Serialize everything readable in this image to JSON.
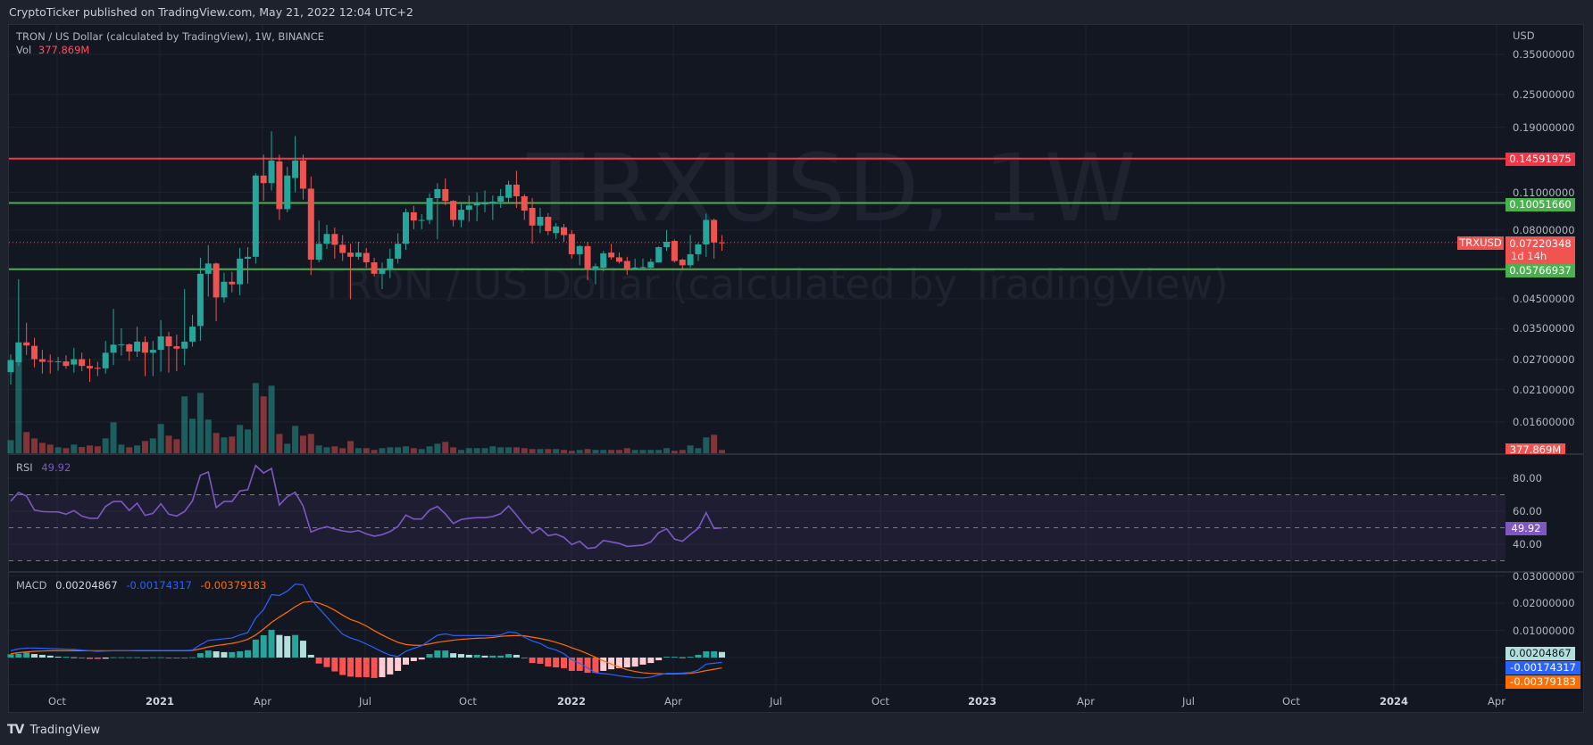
{
  "header": {
    "published": "CryptoTicker published on TradingView.com, May 21, 2022 12:04 UTC+2"
  },
  "legend": {
    "title": "TRON / US Dollar (calculated by TradingView), 1W, BINANCE",
    "vol_label": "Vol",
    "vol_value": "377.869M",
    "rsi_label": "RSI",
    "rsi_value": "49.92",
    "macd_label": "MACD",
    "macd_hist": "0.00204867",
    "macd_line": "-0.00174317",
    "macd_signal": "-0.00379183"
  },
  "watermark": {
    "symbol": "TRXUSD, 1W",
    "description": "TRON / US Dollar (calculated by TradingView)"
  },
  "price_axis": {
    "currency": "USD",
    "labels": [
      "0.35000000",
      "0.25000000",
      "0.19000000",
      "0.11000000",
      "0.08000000",
      "0.04500000",
      "0.03500000",
      "0.02700000",
      "0.02100000",
      "0.01600000"
    ],
    "badges": {
      "resistance": "0.14591975",
      "mid_level": "0.10051660",
      "symbol": "TRXUSD",
      "last_price": "0.07220348",
      "countdown": "1d 14h",
      "support": "0.05766937",
      "volume": "377.869M"
    }
  },
  "rsi_axis": {
    "labels": [
      "80.00",
      "60.00",
      "40.00"
    ],
    "badge": "49.92"
  },
  "macd_axis": {
    "labels": [
      "0.03000000",
      "0.02000000",
      "0.01000000"
    ],
    "badges": {
      "histogram": "0.00204867",
      "macd": "-0.00174317",
      "signal": "-0.00379183"
    }
  },
  "time_axis": {
    "labels": [
      "Oct",
      "2021",
      "Apr",
      "Jul",
      "Oct",
      "2022",
      "Apr",
      "Jul",
      "Oct",
      "2023",
      "Apr",
      "Jul",
      "Oct",
      "2024",
      "Apr"
    ]
  },
  "footer": {
    "brand": "TradingView"
  },
  "colors": {
    "up": "#26a69a",
    "down": "#ef5350",
    "resistance_line": "#f23645",
    "support_line": "#4caf50",
    "rsi": "#7e57c2",
    "macd": "#2962ff",
    "signal": "#ff6d00",
    "hist_up_strong": "#26a69a",
    "hist_up_weak": "#b2dfdb",
    "hist_down_strong": "#ff5252",
    "hist_down_weak": "#ffcdd2"
  },
  "chart_data": {
    "type": "candlestick",
    "symbol": "TRXUSD",
    "interval": "1W",
    "y_scale": "log",
    "horizontal_lines": [
      {
        "value": 0.14591975,
        "color": "#f23645"
      },
      {
        "value": 0.1005166,
        "color": "#4caf50"
      },
      {
        "value": 0.05766937,
        "color": "#4caf50"
      }
    ],
    "last_price": 0.07220348,
    "ohlc": [
      [
        0.0243,
        0.0282,
        0.0219,
        0.0269
      ],
      [
        0.0264,
        0.053,
        0.0256,
        0.0312
      ],
      [
        0.0312,
        0.0368,
        0.0281,
        0.0304
      ],
      [
        0.0303,
        0.0324,
        0.0253,
        0.0271
      ],
      [
        0.0271,
        0.0293,
        0.024,
        0.0265
      ],
      [
        0.0267,
        0.0282,
        0.024,
        0.0265
      ],
      [
        0.0265,
        0.0276,
        0.0246,
        0.0266
      ],
      [
        0.0266,
        0.028,
        0.025,
        0.0256
      ],
      [
        0.0259,
        0.0298,
        0.0242,
        0.0271
      ],
      [
        0.0271,
        0.0286,
        0.0245,
        0.0256
      ],
      [
        0.0256,
        0.0272,
        0.0224,
        0.0251
      ],
      [
        0.0252,
        0.0265,
        0.0235,
        0.0251
      ],
      [
        0.0251,
        0.0316,
        0.024,
        0.0286
      ],
      [
        0.0286,
        0.0413,
        0.0258,
        0.0306
      ],
      [
        0.0306,
        0.0351,
        0.0279,
        0.0307
      ],
      [
        0.0307,
        0.0309,
        0.0267,
        0.0289
      ],
      [
        0.0289,
        0.0356,
        0.0276,
        0.0314
      ],
      [
        0.0313,
        0.0328,
        0.0235,
        0.0286
      ],
      [
        0.0286,
        0.0316,
        0.0235,
        0.0293
      ],
      [
        0.0293,
        0.0376,
        0.0244,
        0.0328
      ],
      [
        0.0328,
        0.0341,
        0.0242,
        0.0302
      ],
      [
        0.0302,
        0.0333,
        0.0245,
        0.0296
      ],
      [
        0.0296,
        0.0488,
        0.0258,
        0.0314
      ],
      [
        0.0314,
        0.0393,
        0.0301,
        0.0356
      ],
      [
        0.0358,
        0.0635,
        0.0316,
        0.0555
      ],
      [
        0.0555,
        0.0706,
        0.0458,
        0.0605
      ],
      [
        0.0605,
        0.061,
        0.0373,
        0.0455
      ],
      [
        0.0455,
        0.056,
        0.0436,
        0.0519
      ],
      [
        0.0519,
        0.0564,
        0.0475,
        0.0508
      ],
      [
        0.0508,
        0.0689,
        0.0463,
        0.063
      ],
      [
        0.063,
        0.0694,
        0.0511,
        0.064
      ],
      [
        0.064,
        0.1289,
        0.0605,
        0.1266
      ],
      [
        0.1266,
        0.151,
        0.1024,
        0.1188
      ],
      [
        0.1188,
        0.1836,
        0.1116,
        0.1436
      ],
      [
        0.1425,
        0.151,
        0.0872,
        0.0955
      ],
      [
        0.0955,
        0.1362,
        0.093,
        0.1266
      ],
      [
        0.124,
        0.1763,
        0.11,
        0.1436
      ],
      [
        0.1436,
        0.151,
        0.1035,
        0.1134
      ],
      [
        0.1134,
        0.1255,
        0.0549,
        0.0625
      ],
      [
        0.0625,
        0.0868,
        0.0611,
        0.0714
      ],
      [
        0.0714,
        0.0837,
        0.0684,
        0.0775
      ],
      [
        0.0775,
        0.0818,
        0.063,
        0.0708
      ],
      [
        0.0708,
        0.0768,
        0.0618,
        0.0661
      ],
      [
        0.0663,
        0.0714,
        0.0448,
        0.064
      ],
      [
        0.064,
        0.0726,
        0.0625,
        0.0663
      ],
      [
        0.0661,
        0.0689,
        0.0584,
        0.0611
      ],
      [
        0.0611,
        0.0635,
        0.0542,
        0.0555
      ],
      [
        0.0555,
        0.061,
        0.0488,
        0.0575
      ],
      [
        0.0575,
        0.0684,
        0.0535,
        0.063
      ],
      [
        0.063,
        0.078,
        0.0605,
        0.0714
      ],
      [
        0.0714,
        0.096,
        0.0679,
        0.093
      ],
      [
        0.093,
        0.0982,
        0.0807,
        0.0868
      ],
      [
        0.087,
        0.0916,
        0.0807,
        0.0872
      ],
      [
        0.0872,
        0.109,
        0.0843,
        0.1048
      ],
      [
        0.1048,
        0.1187,
        0.0743,
        0.113
      ],
      [
        0.113,
        0.1236,
        0.0987,
        0.1023
      ],
      [
        0.1023,
        0.103,
        0.0826,
        0.0872
      ],
      [
        0.0872,
        0.1003,
        0.082,
        0.095
      ],
      [
        0.095,
        0.1071,
        0.086,
        0.0985
      ],
      [
        0.0985,
        0.11,
        0.0862,
        0.1001
      ],
      [
        0.0995,
        0.1117,
        0.093,
        0.1001
      ],
      [
        0.1001,
        0.1071,
        0.0872,
        0.1017
      ],
      [
        0.1017,
        0.113,
        0.0965,
        0.1064
      ],
      [
        0.105,
        0.1212,
        0.1003,
        0.1173
      ],
      [
        0.1173,
        0.1318,
        0.0965,
        0.1064
      ],
      [
        0.1064,
        0.1081,
        0.0872,
        0.0943
      ],
      [
        0.0965,
        0.1048,
        0.0714,
        0.0832
      ],
      [
        0.0832,
        0.0965,
        0.0781,
        0.0895
      ],
      [
        0.0895,
        0.0923,
        0.0768,
        0.0794
      ],
      [
        0.0781,
        0.085,
        0.0743,
        0.0826
      ],
      [
        0.082,
        0.0843,
        0.0726,
        0.0768
      ],
      [
        0.0775,
        0.08,
        0.063,
        0.0654
      ],
      [
        0.0654,
        0.0706,
        0.0596,
        0.07
      ],
      [
        0.07,
        0.0726,
        0.0526,
        0.058
      ],
      [
        0.0573,
        0.0605,
        0.0508,
        0.0591
      ],
      [
        0.0584,
        0.0673,
        0.0566,
        0.0659
      ],
      [
        0.0663,
        0.0714,
        0.0625,
        0.0637
      ],
      [
        0.0637,
        0.0664,
        0.0605,
        0.0614
      ],
      [
        0.0618,
        0.064,
        0.055,
        0.058
      ],
      [
        0.058,
        0.063,
        0.0575,
        0.0585
      ],
      [
        0.0584,
        0.063,
        0.058,
        0.0587
      ],
      [
        0.0584,
        0.063,
        0.058,
        0.0614
      ],
      [
        0.061,
        0.07,
        0.061,
        0.0694
      ],
      [
        0.0694,
        0.08,
        0.0673,
        0.0726
      ],
      [
        0.0731,
        0.074,
        0.061,
        0.0618
      ],
      [
        0.0625,
        0.063,
        0.058,
        0.0596
      ],
      [
        0.0596,
        0.0768,
        0.0584,
        0.0654
      ],
      [
        0.0654,
        0.072,
        0.0618,
        0.071
      ],
      [
        0.071,
        0.092,
        0.064,
        0.0872
      ],
      [
        0.0872,
        0.0882,
        0.063,
        0.0722
      ],
      [
        0.07225,
        0.0768,
        0.0673,
        0.07220348
      ]
    ],
    "volume_millions": [
      1500,
      12240,
      2420,
      1700,
      1190,
      990,
      680,
      580,
      990,
      710,
      890,
      790,
      1700,
      3540,
      990,
      680,
      890,
      1400,
      1700,
      3340,
      2010,
      1600,
      6500,
      3950,
      6900,
      3850,
      2320,
      1810,
      1910,
      3230,
      2720,
      8030,
      6500,
      7720,
      2210,
      1090,
      3130,
      2010,
      2210,
      890,
      680,
      790,
      580,
      1400,
      580,
      580,
      380,
      580,
      680,
      680,
      790,
      580,
      480,
      790,
      1090,
      1300,
      680,
      380,
      580,
      580,
      580,
      790,
      680,
      680,
      680,
      580,
      480,
      480,
      480,
      480,
      380,
      280,
      380,
      480,
      380,
      380,
      380,
      380,
      580,
      380,
      380,
      380,
      380,
      580,
      280,
      380,
      890,
      580,
      1810,
      2110,
      377.869
    ],
    "rsi": {
      "values": [
        66.1,
        71.4,
        69.2,
        60.7,
        59.8,
        59.6,
        59.6,
        58.2,
        60.4,
        57.1,
        55.7,
        55.7,
        62.9,
        65.9,
        65.9,
        60.5,
        64.9,
        57.5,
        58.7,
        64.5,
        58.2,
        57.1,
        59.8,
        66.3,
        81.8,
        83.8,
        62.2,
        65.9,
        65.9,
        72.3,
        73.0,
        87.7,
        83.2,
        85.9,
        63.8,
        68.8,
        71.5,
        63.1,
        47.4,
        49.4,
        50.6,
        49.2,
        48.1,
        47.4,
        48.3,
        46.3,
        44.9,
        45.8,
        47.7,
        50.8,
        57.7,
        55.3,
        55.3,
        60.7,
        62.9,
        58.4,
        52.6,
        55.0,
        55.7,
        56.1,
        56.1,
        56.8,
        58.5,
        63.2,
        57.7,
        51.5,
        46.7,
        49.7,
        45.2,
        46.1,
        44.2,
        39.8,
        41.8,
        37.5,
        38.0,
        42.3,
        41.4,
        40.5,
        38.7,
        39.1,
        39.5,
        41.4,
        47.0,
        49.4,
        43.1,
        41.8,
        45.9,
        49.7,
        59.1,
        49.6,
        49.92
      ],
      "bands": [
        70,
        50,
        30
      ]
    },
    "macd": {
      "macd": [
        0.0025,
        0.0032,
        0.0035,
        0.0035,
        0.0034,
        0.0033,
        0.0032,
        0.0031,
        0.003,
        0.0027,
        0.0025,
        0.0023,
        0.0024,
        0.0025,
        0.0025,
        0.0025,
        0.0026,
        0.0026,
        0.0026,
        0.0026,
        0.0026,
        0.0026,
        0.0026,
        0.0028,
        0.0047,
        0.0063,
        0.0066,
        0.0069,
        0.0072,
        0.0083,
        0.0092,
        0.0145,
        0.0176,
        0.0231,
        0.0228,
        0.0244,
        0.027,
        0.0267,
        0.0214,
        0.0181,
        0.0149,
        0.0116,
        0.0086,
        0.0072,
        0.0063,
        0.005,
        0.0036,
        0.0021,
        0.0009,
        0.0004,
        0.0023,
        0.0034,
        0.0043,
        0.0063,
        0.0082,
        0.0087,
        0.0081,
        0.0081,
        0.0081,
        0.0081,
        0.0081,
        0.008,
        0.0083,
        0.0094,
        0.0091,
        0.0075,
        0.0061,
        0.0052,
        0.0036,
        0.0028,
        0.0014,
        -0.0008,
        -0.0021,
        -0.0038,
        -0.0056,
        -0.0059,
        -0.0062,
        -0.0067,
        -0.0071,
        -0.0074,
        -0.0075,
        -0.0072,
        -0.0064,
        -0.0058,
        -0.0058,
        -0.0057,
        -0.0055,
        -0.0046,
        -0.0024,
        -0.0021,
        -0.00174317
      ],
      "signal": [
        0.0014,
        0.0018,
        0.0021,
        0.0023,
        0.0024,
        0.0025,
        0.0025,
        0.0025,
        0.0025,
        0.0025,
        0.0025,
        0.0025,
        0.0025,
        0.0025,
        0.0025,
        0.0025,
        0.0025,
        0.0025,
        0.0025,
        0.0025,
        0.0025,
        0.0025,
        0.0025,
        0.0026,
        0.0032,
        0.0039,
        0.0044,
        0.0048,
        0.0052,
        0.0058,
        0.0067,
        0.0083,
        0.0105,
        0.0129,
        0.0149,
        0.0167,
        0.0187,
        0.0203,
        0.0206,
        0.02,
        0.0189,
        0.0174,
        0.0156,
        0.014,
        0.013,
        0.0116,
        0.0099,
        0.0083,
        0.0069,
        0.0056,
        0.0048,
        0.0045,
        0.0045,
        0.005,
        0.0056,
        0.006,
        0.0064,
        0.0067,
        0.0069,
        0.0071,
        0.0072,
        0.0074,
        0.0078,
        0.008,
        0.0081,
        0.008,
        0.0075,
        0.007,
        0.0064,
        0.0056,
        0.0047,
        0.0036,
        0.0026,
        0.0014,
        0.0001,
        -0.0012,
        -0.0024,
        -0.0035,
        -0.0045,
        -0.0051,
        -0.0056,
        -0.0058,
        -0.0059,
        -0.006,
        -0.006,
        -0.0059,
        -0.0058,
        -0.0054,
        -0.0048,
        -0.0043,
        -0.00379183
      ],
      "histogram": [
        0.0012,
        0.0014,
        0.0019,
        0.0013,
        0.001,
        0.0007,
        0.0003,
        0.0003,
        0.0001,
        -0.0001,
        -0.0005,
        -0.0005,
        -0.0004,
        0.0001,
        0.0001,
        0.0001,
        0.0001,
        -0.0001,
        0.0001,
        0.0001,
        -0.0001,
        -0.0001,
        -0.0001,
        0.0001,
        0.0016,
        0.0026,
        0.0023,
        0.002,
        0.002,
        0.0023,
        0.0027,
        0.0066,
        0.0082,
        0.0102,
        0.0083,
        0.0079,
        0.0083,
        0.0062,
        0.001,
        -0.0022,
        -0.0035,
        -0.0051,
        -0.0064,
        -0.007,
        -0.0072,
        -0.0072,
        -0.0075,
        -0.0072,
        -0.0062,
        -0.0049,
        -0.0026,
        -0.0013,
        -0.0007,
        0.0013,
        0.0026,
        0.0026,
        0.0016,
        0.0013,
        0.001,
        0.001,
        0.0007,
        0.0007,
        0.0007,
        0.0013,
        0.001,
        -0.0002,
        -0.002,
        -0.0023,
        -0.0033,
        -0.0036,
        -0.0039,
        -0.0049,
        -0.0049,
        -0.0056,
        -0.0056,
        -0.0049,
        -0.0043,
        -0.0039,
        -0.0036,
        -0.0033,
        -0.0026,
        -0.002,
        -0.001,
        0.0003,
        0.0003,
        0.0001,
        0.0003,
        0.001,
        0.0023,
        0.0023,
        0.00204867
      ]
    }
  }
}
